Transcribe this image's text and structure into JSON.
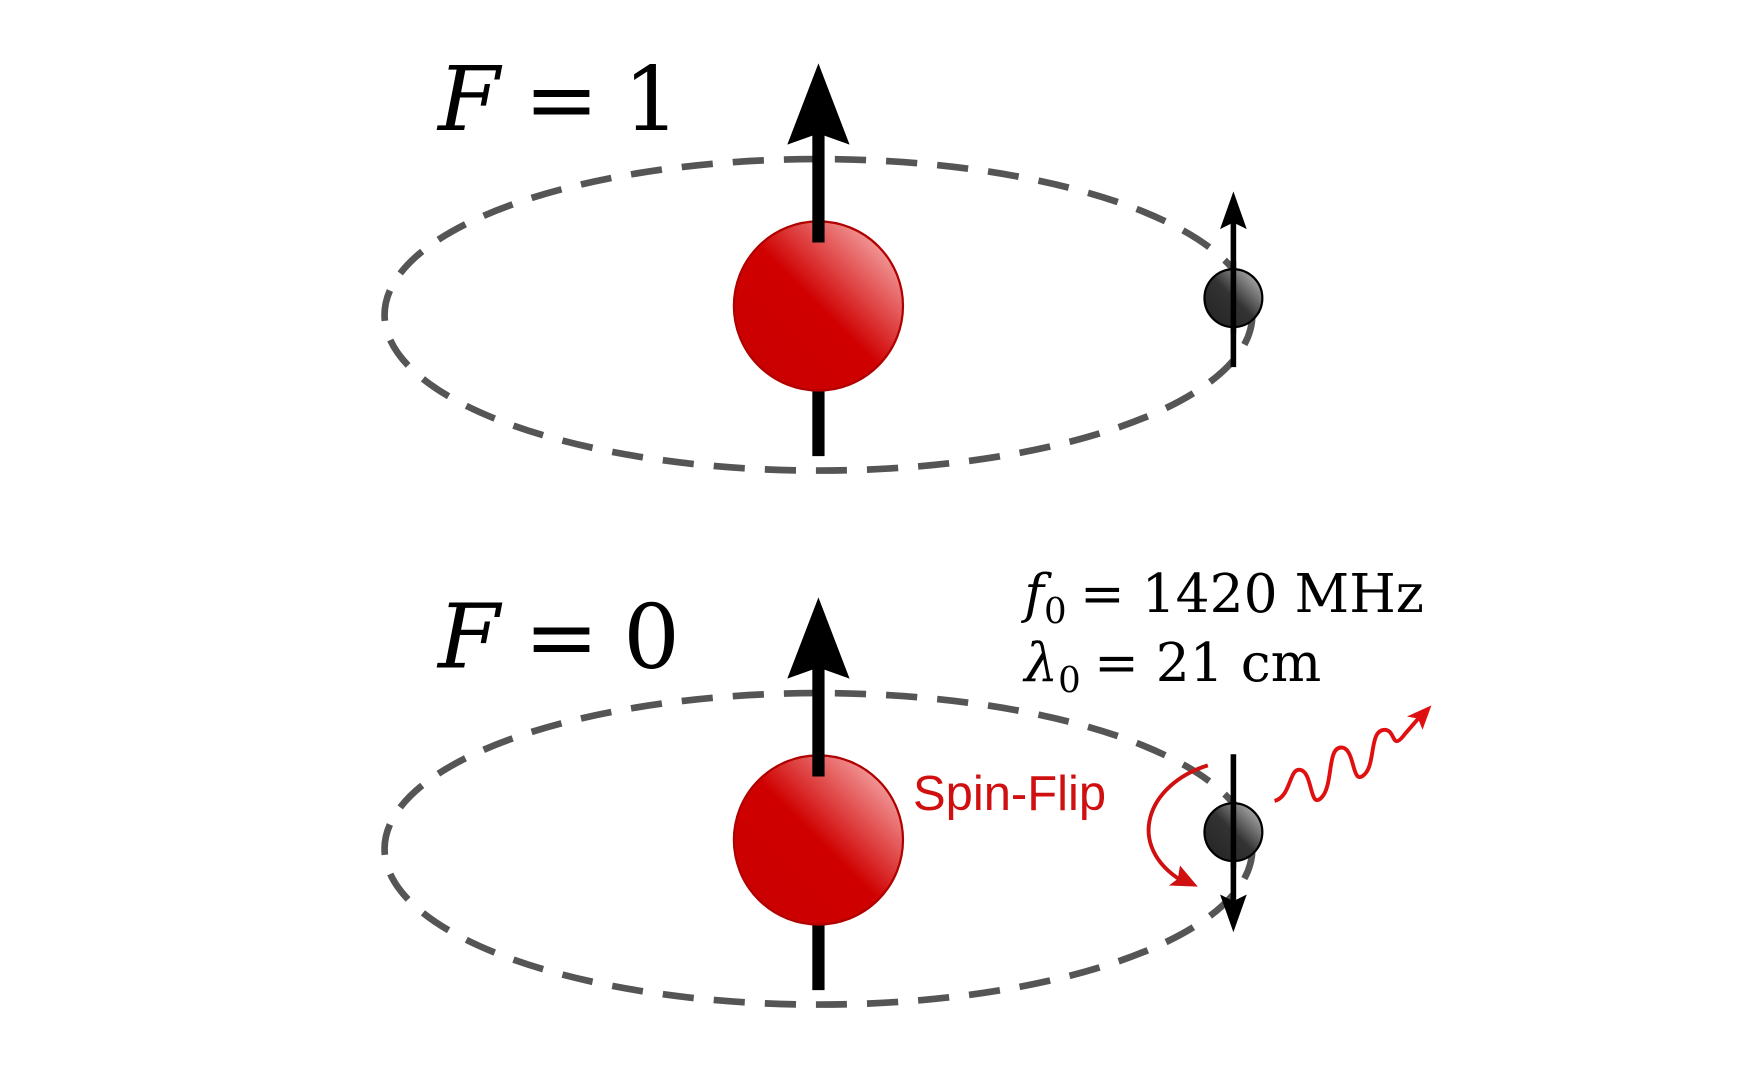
{
  "states": [
    {
      "label_var": "F",
      "label_eq": "=",
      "label_val": "1",
      "electron_spin": "up",
      "nucleus_spin": "up"
    },
    {
      "label_var": "F",
      "label_eq": "=",
      "label_val": "0",
      "electron_spin": "down",
      "nucleus_spin": "up"
    }
  ],
  "transition": {
    "label": "Spin-Flip",
    "freq_var": "f",
    "freq_sub": "0",
    "freq_value": "= 1420 MHz",
    "wave_var": "λ",
    "wave_sub": "0",
    "wave_value": "= 21 cm"
  },
  "colors": {
    "nucleus": "#d00000",
    "orbit": "#555555",
    "electron": "#333333",
    "annotation": "#d01010"
  }
}
